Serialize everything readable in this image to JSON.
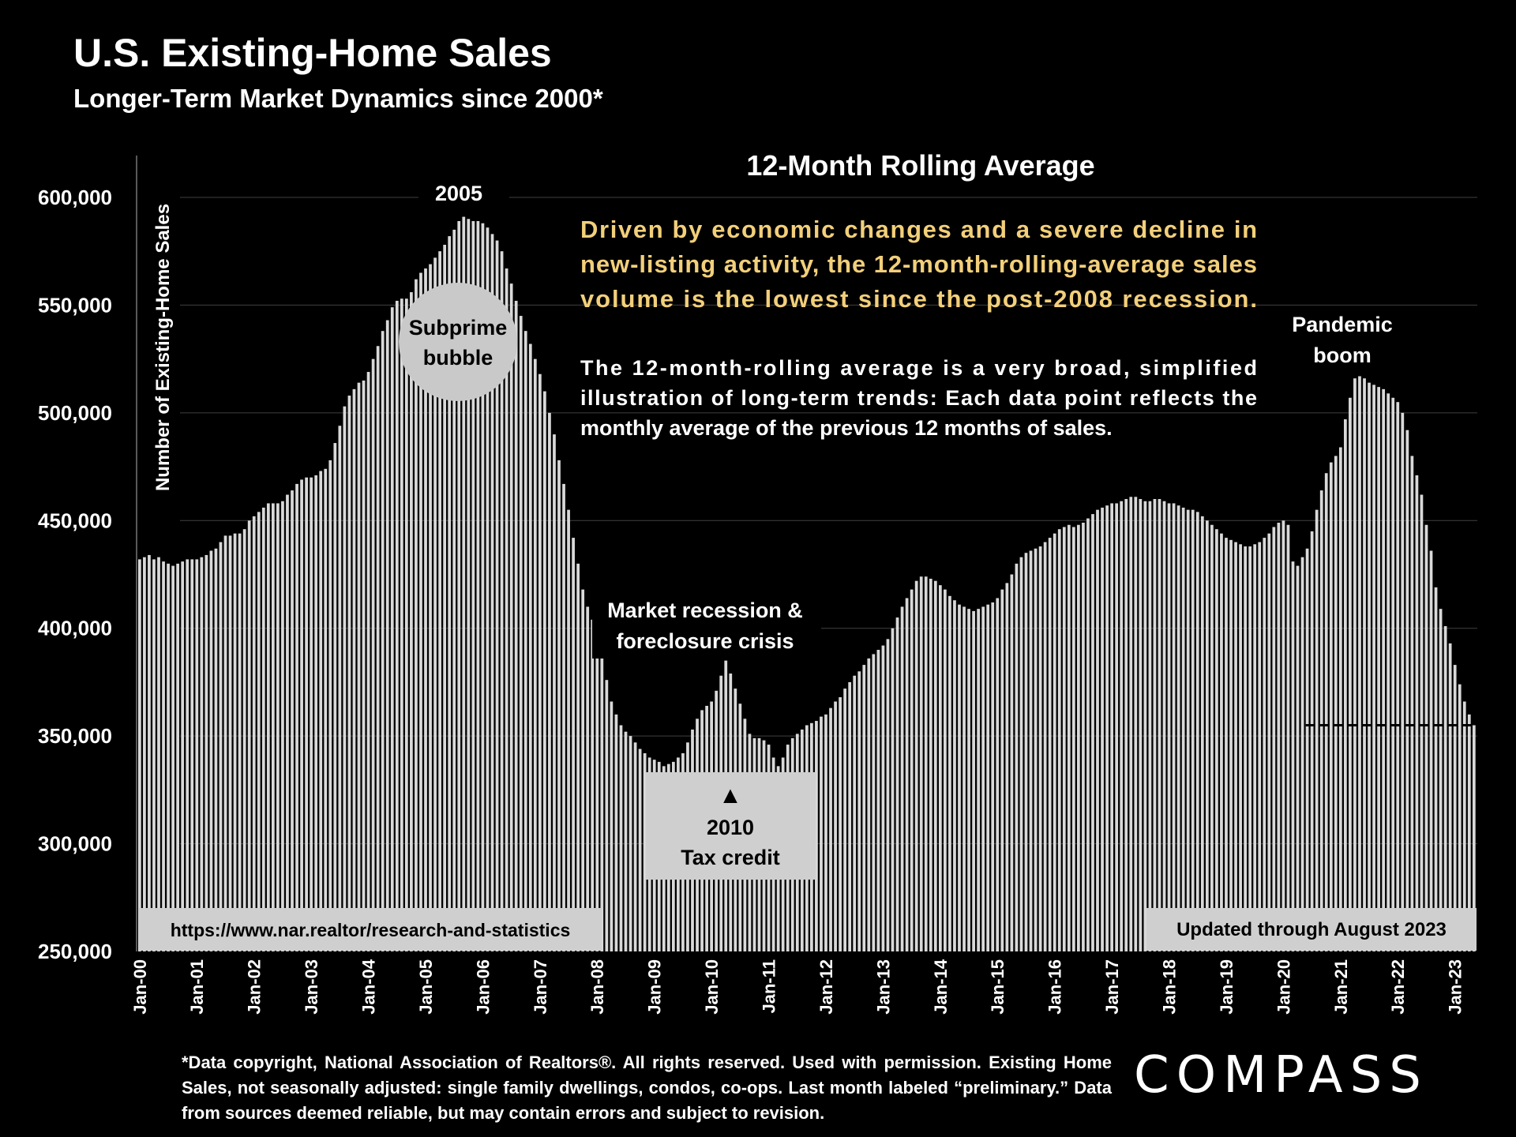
{
  "header": {
    "title": "U.S. Existing-Home Sales",
    "subtitle": "Longer-Term Market Dynamics since 2000*"
  },
  "annotations": {
    "rolling_title": "12-Month Rolling Average",
    "highlight_lines": [
      "Driven by economic changes and a severe decline in",
      "new-listing activity, the 12-month-rolling-average sales",
      "volume is the lowest since the post-2008 recession."
    ],
    "explain_lines": [
      "The 12-month-rolling average is a very broad, simplified",
      "illustration of long-term trends: Each data point reflects the",
      "monthly average of the previous 12 months of sales."
    ],
    "year_2005": "2005",
    "bubble_lines": [
      "Subprime",
      "bubble"
    ],
    "recession_lines": [
      "Market recession &",
      "foreclosure crisis"
    ],
    "tax_arrow": "▲",
    "tax_lines": [
      "2010",
      "Tax credit"
    ],
    "pandemic_lines": [
      "Pandemic",
      "boom"
    ],
    "source_url": "https://www.nar.realtor/research-and-statistics",
    "updated": "Updated through August 2023"
  },
  "footnote": "*Data copyright, National Association of Realtors®. All rights reserved. Used with permission. Existing Home Sales, not seasonally adjusted:  single family dwellings, condos, co-ops. Last month labeled “preliminary.” Data from sources deemed reliable, but may contain errors and subject to revision.",
  "logo": "COMPASS",
  "colors": {
    "background": "#000000",
    "bars": "#d9d9d9",
    "highlight_text": "#f2cf7a",
    "annotation_box": "#cfcfcf"
  },
  "chart_data": {
    "type": "bar",
    "ylabel": "Number of Existing-Home Sales",
    "ylim": [
      250000,
      600000
    ],
    "yticks": [
      250000,
      300000,
      350000,
      400000,
      450000,
      500000,
      550000,
      600000
    ],
    "ytick_labels": [
      "250,000",
      "300,000",
      "350,000",
      "400,000",
      "450,000",
      "500,000",
      "550,000",
      "600,000"
    ],
    "grid": true,
    "x_start": "Jan-00",
    "x_end": "Aug-23",
    "xtick_labels": [
      "Jan-00",
      "Jan-01",
      "Jan-02",
      "Jan-03",
      "Jan-04",
      "Jan-05",
      "Jan-06",
      "Jan-07",
      "Jan-08",
      "Jan-09",
      "Jan-10",
      "Jan-11",
      "Jan-12",
      "Jan-13",
      "Jan-14",
      "Jan-15",
      "Jan-16",
      "Jan-17",
      "Jan-18",
      "Jan-19",
      "Jan-20",
      "Jan-21",
      "Jan-22",
      "Jan-23"
    ],
    "reference_line": {
      "style": "dashed",
      "value": 355000,
      "from": "Jun-20",
      "to": "Aug-23"
    },
    "series": [
      {
        "name": "12-Month Rolling Average",
        "values": [
          432000,
          433000,
          434000,
          432000,
          433000,
          431000,
          430000,
          429000,
          430000,
          431000,
          432000,
          432000,
          432000,
          433000,
          434000,
          436000,
          437000,
          440000,
          443000,
          443000,
          444000,
          444000,
          446000,
          450000,
          452000,
          454000,
          456000,
          458000,
          458000,
          458000,
          459000,
          462000,
          464000,
          467000,
          469000,
          470000,
          470000,
          471000,
          473000,
          474000,
          478000,
          486000,
          494000,
          503000,
          508000,
          511000,
          514000,
          515000,
          519000,
          525000,
          531000,
          538000,
          543000,
          549000,
          552000,
          553000,
          553000,
          556000,
          562000,
          565000,
          567000,
          569000,
          572000,
          575000,
          578000,
          582000,
          585000,
          589000,
          591000,
          590000,
          589000,
          589000,
          588000,
          586000,
          583000,
          580000,
          575000,
          567000,
          560000,
          552000,
          545000,
          538000,
          532000,
          525000,
          518000,
          510000,
          500000,
          490000,
          478000,
          467000,
          455000,
          442000,
          430000,
          418000,
          410000,
          404000,
          395000,
          386000,
          376000,
          366000,
          360000,
          355000,
          352000,
          350000,
          347000,
          344000,
          342000,
          340000,
          339000,
          338000,
          336000,
          337000,
          338000,
          340000,
          342000,
          347000,
          353000,
          358000,
          362000,
          364000,
          366000,
          371000,
          378000,
          385000,
          379000,
          372000,
          365000,
          358000,
          351000,
          349000,
          349000,
          348000,
          346000,
          340000,
          336000,
          340000,
          346000,
          349000,
          351000,
          353000,
          355000,
          356000,
          357000,
          359000,
          360000,
          363000,
          366000,
          368000,
          372000,
          375000,
          378000,
          380000,
          383000,
          386000,
          388000,
          390000,
          392000,
          395000,
          400000,
          405000,
          410000,
          414000,
          418000,
          422000,
          424000,
          424000,
          423000,
          422000,
          420000,
          418000,
          415000,
          413000,
          411000,
          410000,
          409000,
          408000,
          409000,
          410000,
          411000,
          412000,
          414000,
          418000,
          421000,
          425000,
          430000,
          433000,
          435000,
          436000,
          437000,
          438000,
          440000,
          442000,
          444000,
          446000,
          447000,
          448000,
          447000,
          448000,
          449000,
          451000,
          453000,
          455000,
          456000,
          457000,
          458000,
          458000,
          459000,
          460000,
          461000,
          461000,
          460000,
          459000,
          459000,
          460000,
          460000,
          459000,
          458000,
          458000,
          457000,
          456000,
          455000,
          455000,
          454000,
          452000,
          450000,
          448000,
          446000,
          444000,
          442000,
          441000,
          440000,
          439000,
          438000,
          438000,
          439000,
          440000,
          442000,
          444000,
          447000,
          449000,
          450000,
          448000,
          431000,
          429000,
          433000,
          437000,
          445000,
          455000,
          464000,
          472000,
          477000,
          480000,
          484000,
          497000,
          507000,
          516000,
          517000,
          516000,
          514000,
          513000,
          512000,
          511000,
          509000,
          507000,
          505000,
          500000,
          492000,
          480000,
          471000,
          462000,
          448000,
          436000,
          419000,
          409000,
          401000,
          393000,
          383000,
          374000,
          366000,
          360000,
          355000
        ]
      }
    ]
  }
}
